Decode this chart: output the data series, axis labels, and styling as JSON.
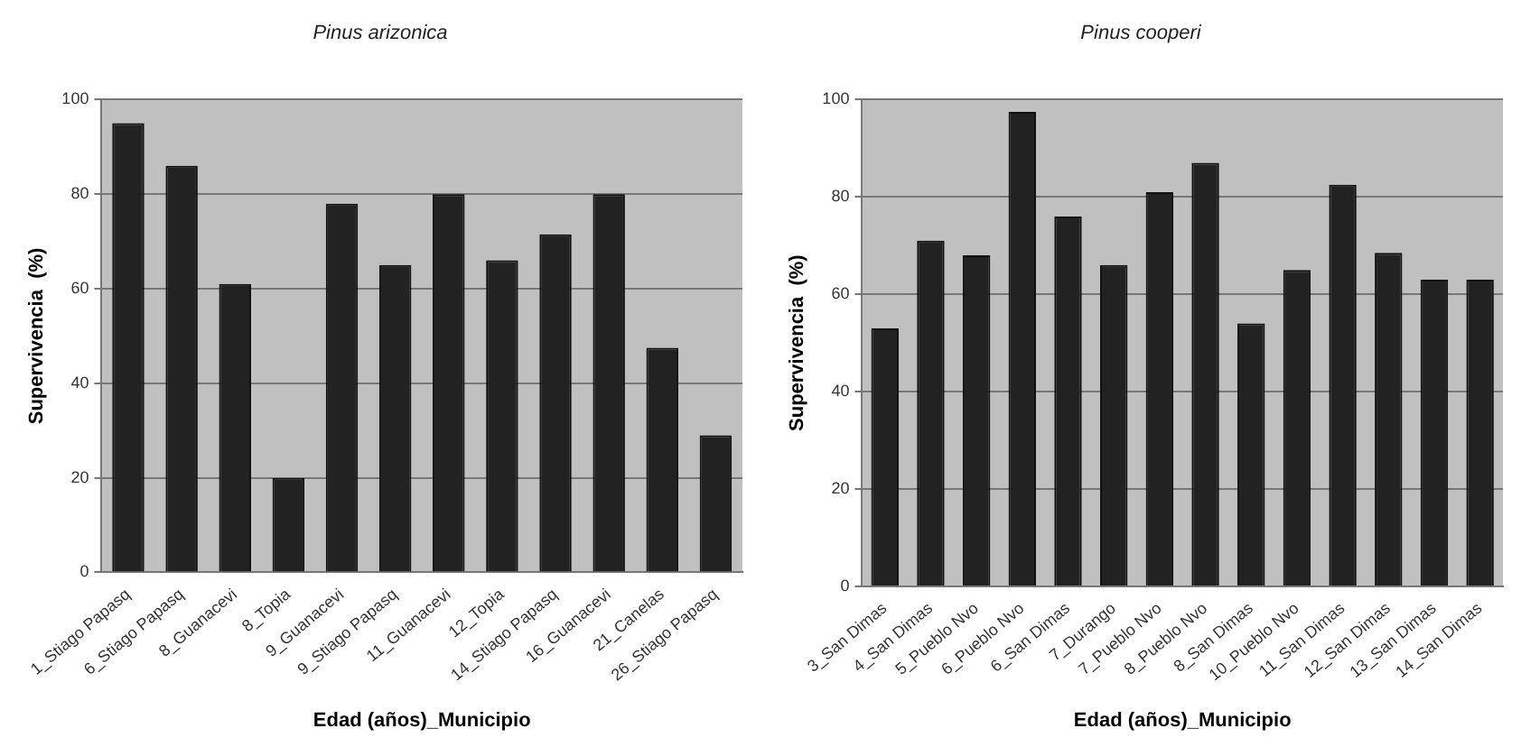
{
  "chart_data": [
    {
      "type": "bar",
      "title": "Pinus arizonica",
      "xlabel": "Edad (años)_Municipio",
      "ylabel": "Supervivencia  (%)",
      "categories": [
        "1_Stiago Papasq",
        "6_Stiago Papasq",
        "8_Guanacevi",
        "8_Topia",
        "9_Guanacevi",
        "9_Stiago Papasq",
        "11_Guanacevi",
        "12_Topia",
        "14_Stiago Papasq",
        "16_Guanacevi",
        "21_Canelas",
        "26_Stiago Papasq"
      ],
      "values": [
        95,
        86,
        61,
        20,
        78,
        65,
        80,
        66,
        71.5,
        80,
        47.5,
        29
      ],
      "color": "#222222",
      "ylim": [
        0,
        100
      ],
      "yticks": [
        0,
        20,
        40,
        60,
        80,
        100
      ],
      "grid": "y",
      "legend": false
    },
    {
      "type": "bar",
      "title": "Pinus cooperi",
      "xlabel": "Edad (años)_Municipio",
      "ylabel": "Supervivencia  (%)",
      "categories": [
        "3_San Dimas",
        "4_San Dimas",
        "5_Pueblo Nvo",
        "6_Pueblo Nvo",
        "6_San Dimas",
        "7_Durango",
        "7_Pueblo Nvo",
        "8_Pueblo Nvo",
        "8_San Dimas",
        "10_Pueblo Nvo",
        "11_San Dimas",
        "12_San Dimas",
        "13_San Dimas",
        "14_San Dimas"
      ],
      "values": [
        53,
        71,
        68,
        97.5,
        76,
        66,
        81,
        87,
        54,
        65,
        82.5,
        68.5,
        63,
        63
      ],
      "color": "#222222",
      "ylim": [
        0,
        100
      ],
      "yticks": [
        0,
        20,
        40,
        60,
        80,
        100
      ],
      "grid": "y",
      "legend": false
    }
  ]
}
